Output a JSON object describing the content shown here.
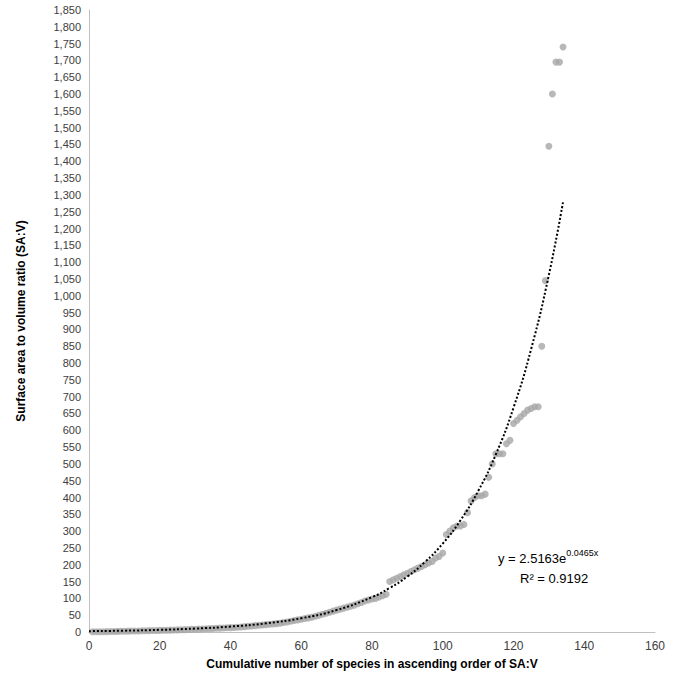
{
  "chart_data": {
    "type": "scatter",
    "x_label": "Cumulative number of species in ascending order of SA:V",
    "y_label": "Surface area to volume ratio (SA:V)",
    "xlim": [
      0,
      160
    ],
    "xticks": [
      0,
      20,
      40,
      60,
      80,
      100,
      120,
      140,
      160
    ],
    "ylim": [
      0,
      1850
    ],
    "yticks": [
      0,
      50,
      100,
      150,
      200,
      250,
      300,
      350,
      400,
      450,
      500,
      550,
      600,
      650,
      700,
      750,
      800,
      850,
      900,
      950,
      {
        "value": 1000,
        "label": "1,000"
      },
      {
        "value": 1050,
        "label": "1,050"
      },
      {
        "value": 1100,
        "label": "1,100"
      },
      {
        "value": 1150,
        "label": "1,150"
      },
      {
        "value": 1200,
        "label": "1,200"
      },
      {
        "value": 1250,
        "label": "1,250"
      },
      {
        "value": 1300,
        "label": "1,300"
      },
      {
        "value": 1350,
        "label": "1,350"
      },
      {
        "value": 1400,
        "label": "1,400"
      },
      {
        "value": 1450,
        "label": "1,450"
      },
      {
        "value": 1500,
        "label": "1,500"
      },
      {
        "value": 1550,
        "label": "1,550"
      },
      {
        "value": 1600,
        "label": "1,600"
      },
      {
        "value": 1650,
        "label": "1,650"
      },
      {
        "value": 1700,
        "label": "1,700"
      },
      {
        "value": 1750,
        "label": "1,750"
      },
      {
        "value": 1800,
        "label": "1,800"
      },
      {
        "value": 1850,
        "label": "1,850"
      }
    ],
    "grid": false,
    "series": [
      {
        "type": "scatter",
        "color": "#a6a6a6",
        "marker": "circle",
        "x": [
          1,
          2,
          3,
          4,
          5,
          6,
          7,
          8,
          9,
          10,
          11,
          12,
          13,
          14,
          15,
          16,
          17,
          18,
          19,
          20,
          21,
          22,
          23,
          24,
          25,
          26,
          27,
          28,
          29,
          30,
          31,
          32,
          33,
          34,
          35,
          36,
          37,
          38,
          39,
          40,
          41,
          42,
          43,
          44,
          45,
          46,
          47,
          48,
          49,
          50,
          51,
          52,
          53,
          54,
          55,
          56,
          57,
          58,
          59,
          60,
          61,
          62,
          63,
          64,
          65,
          66,
          67,
          68,
          69,
          70,
          71,
          72,
          73,
          74,
          75,
          76,
          77,
          78,
          79,
          80,
          81,
          82,
          83,
          84,
          85,
          86,
          87,
          88,
          89,
          90,
          91,
          92,
          93,
          94,
          95,
          96,
          97,
          98,
          99,
          100,
          101,
          102,
          103,
          104,
          105,
          106,
          107,
          108,
          109,
          110,
          111,
          112,
          113,
          114,
          115,
          116,
          117,
          118,
          119,
          120,
          121,
          122,
          123,
          124,
          125,
          126,
          127,
          128,
          129,
          130,
          131,
          132,
          133,
          134
        ],
        "values": [
          0.5,
          0.7,
          0.9,
          1,
          1.2,
          1.4,
          1.6,
          1.8,
          2,
          2.2,
          2.5,
          2.8,
          3,
          3.2,
          3.5,
          3.8,
          4,
          4.2,
          4.5,
          4.8,
          5,
          5.3,
          5.6,
          6,
          6.3,
          6.6,
          7,
          7.4,
          7.8,
          8.2,
          8.6,
          9,
          9.5,
          10,
          10.5,
          11,
          11.5,
          12,
          12.5,
          13,
          13.5,
          14,
          15,
          16,
          17,
          18,
          19,
          20,
          21,
          22,
          23,
          24,
          25,
          26,
          28,
          30,
          32,
          34,
          36,
          38,
          40,
          42,
          44,
          47,
          50,
          53,
          56,
          59,
          62,
          65,
          68,
          71,
          74,
          77,
          80,
          84,
          88,
          92,
          95,
          98,
          100,
          104,
          108,
          112,
          150,
          155,
          160,
          165,
          170,
          175,
          180,
          185,
          190,
          195,
          200,
          205,
          210,
          220,
          225,
          235,
          290,
          300,
          310,
          315,
          315,
          320,
          355,
          390,
          400,
          405,
          405,
          410,
          460,
          500,
          530,
          530,
          530,
          560,
          570,
          620,
          630,
          640,
          650,
          660,
          665,
          670,
          670,
          850,
          1045,
          1445,
          1600,
          1695,
          1695,
          1740
        ]
      },
      {
        "type": "line",
        "color": "#000000",
        "line_style": "dotted",
        "x": [
          0,
          10,
          20,
          30,
          40,
          50,
          60,
          70,
          80,
          85,
          90,
          95,
          100,
          105,
          110,
          115,
          120,
          125,
          130,
          134
        ],
        "values": [
          2.5,
          4.0,
          6.4,
          10.2,
          16.2,
          25.7,
          41,
          65.2,
          103.8,
          131,
          165,
          208.6,
          263,
          332,
          419,
          528,
          667,
          842,
          1062,
          1279
        ]
      }
    ],
    "annotations": [
      {
        "text": "y = 2.5163e",
        "superscript": "0.0465x"
      },
      {
        "text": "R² = 0.9192"
      }
    ]
  }
}
